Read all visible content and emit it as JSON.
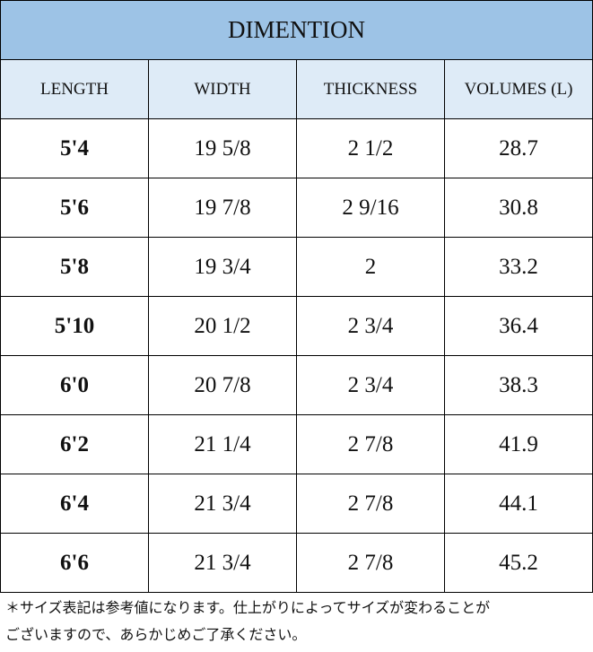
{
  "table": {
    "title": "DIMENTION",
    "header": [
      "LENGTH",
      "WIDTH",
      "THICKNESS",
      "VOLUMES (L)"
    ],
    "rows": [
      [
        "5'4",
        "19 5/8",
        "2 1/2",
        "28.7"
      ],
      [
        "5'6",
        "19 7/8",
        "2 9/16",
        "30.8"
      ],
      [
        "5'8",
        "19 3/4",
        "2",
        "33.2"
      ],
      [
        "5'10",
        "20 1/2",
        "2 3/4",
        "36.4"
      ],
      [
        "6'0",
        "20 7/8",
        "2 3/4",
        "38.3"
      ],
      [
        "6'2",
        "21 1/4",
        "2 7/8",
        "41.9"
      ],
      [
        "6'4",
        "21 3/4",
        "2 7/8",
        "44.1"
      ],
      [
        "6'6",
        "21 3/4",
        "2 7/8",
        "45.2"
      ]
    ]
  },
  "note": [
    "＊サイズ表記は参考値になります。仕上がりによってサイズが変わることが",
    "ございますので、あらかじめご了承ください。"
  ]
}
